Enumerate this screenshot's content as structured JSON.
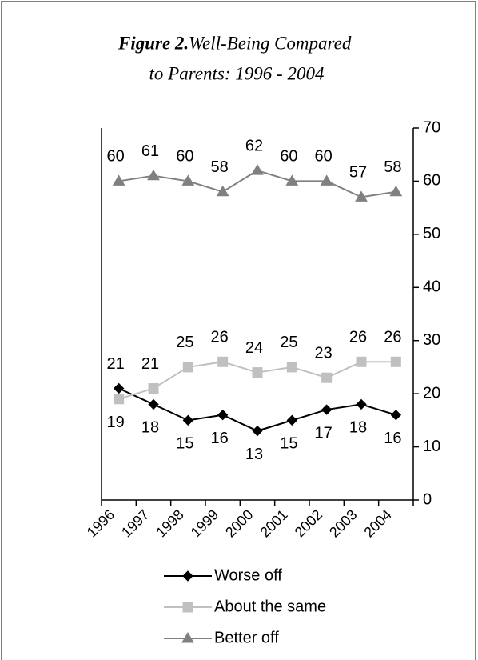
{
  "chart_data": {
    "type": "line",
    "figure_label": "Figure 2.",
    "title_lines": [
      "Well-Being Compared",
      "to Parents:  1996 - 2004"
    ],
    "categories": [
      "1996",
      "1997",
      "1998",
      "1999",
      "2000",
      "2001",
      "2002",
      "2003",
      "2004"
    ],
    "series": [
      {
        "name": "Worse off",
        "color": "#000000",
        "marker": "diamond",
        "values": [
          21,
          18,
          15,
          16,
          13,
          15,
          17,
          18,
          16
        ]
      },
      {
        "name": "About the same",
        "color": "#c0c0c0",
        "marker": "square",
        "values": [
          19,
          21,
          25,
          26,
          24,
          25,
          23,
          26,
          26
        ]
      },
      {
        "name": "Better off",
        "color": "#808080",
        "marker": "triangle",
        "values": [
          60,
          61,
          60,
          58,
          62,
          60,
          60,
          57,
          58
        ]
      }
    ],
    "ylim": [
      0,
      70
    ],
    "yticks": [
      0,
      10,
      20,
      30,
      40,
      50,
      60,
      70
    ],
    "y_axis_side": "right",
    "grid": false
  }
}
